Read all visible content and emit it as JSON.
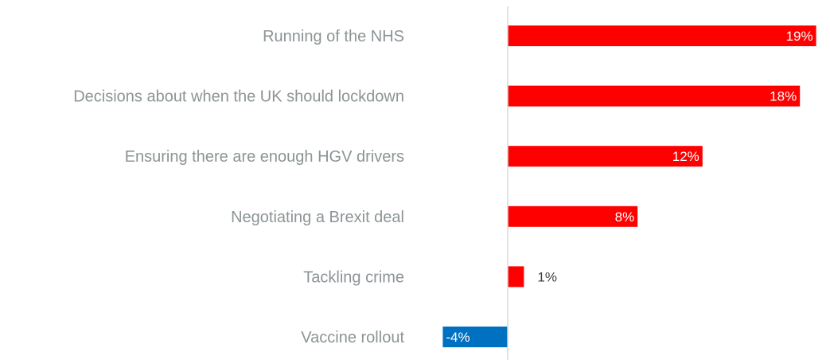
{
  "chart_data": {
    "type": "bar",
    "orientation": "horizontal",
    "categories": [
      "Running of the NHS",
      "Decisions about when the UK should lockdown",
      "Ensuring there are enough HGV drivers",
      "Negotiating a Brexit deal",
      "Tackling crime",
      "Vaccine rollout"
    ],
    "values": [
      19,
      18,
      12,
      8,
      1,
      -4
    ],
    "value_labels": [
      "19%",
      "18%",
      "12%",
      "8%",
      "1%",
      "-4%"
    ],
    "unit": "%",
    "xlim": [
      -4,
      19
    ],
    "grid": false,
    "legend": "none",
    "colors": {
      "positive": "#ff0000",
      "negative": "#0070c0",
      "zero_line": "#d9d9d9",
      "category_text": "#8c9496"
    }
  }
}
